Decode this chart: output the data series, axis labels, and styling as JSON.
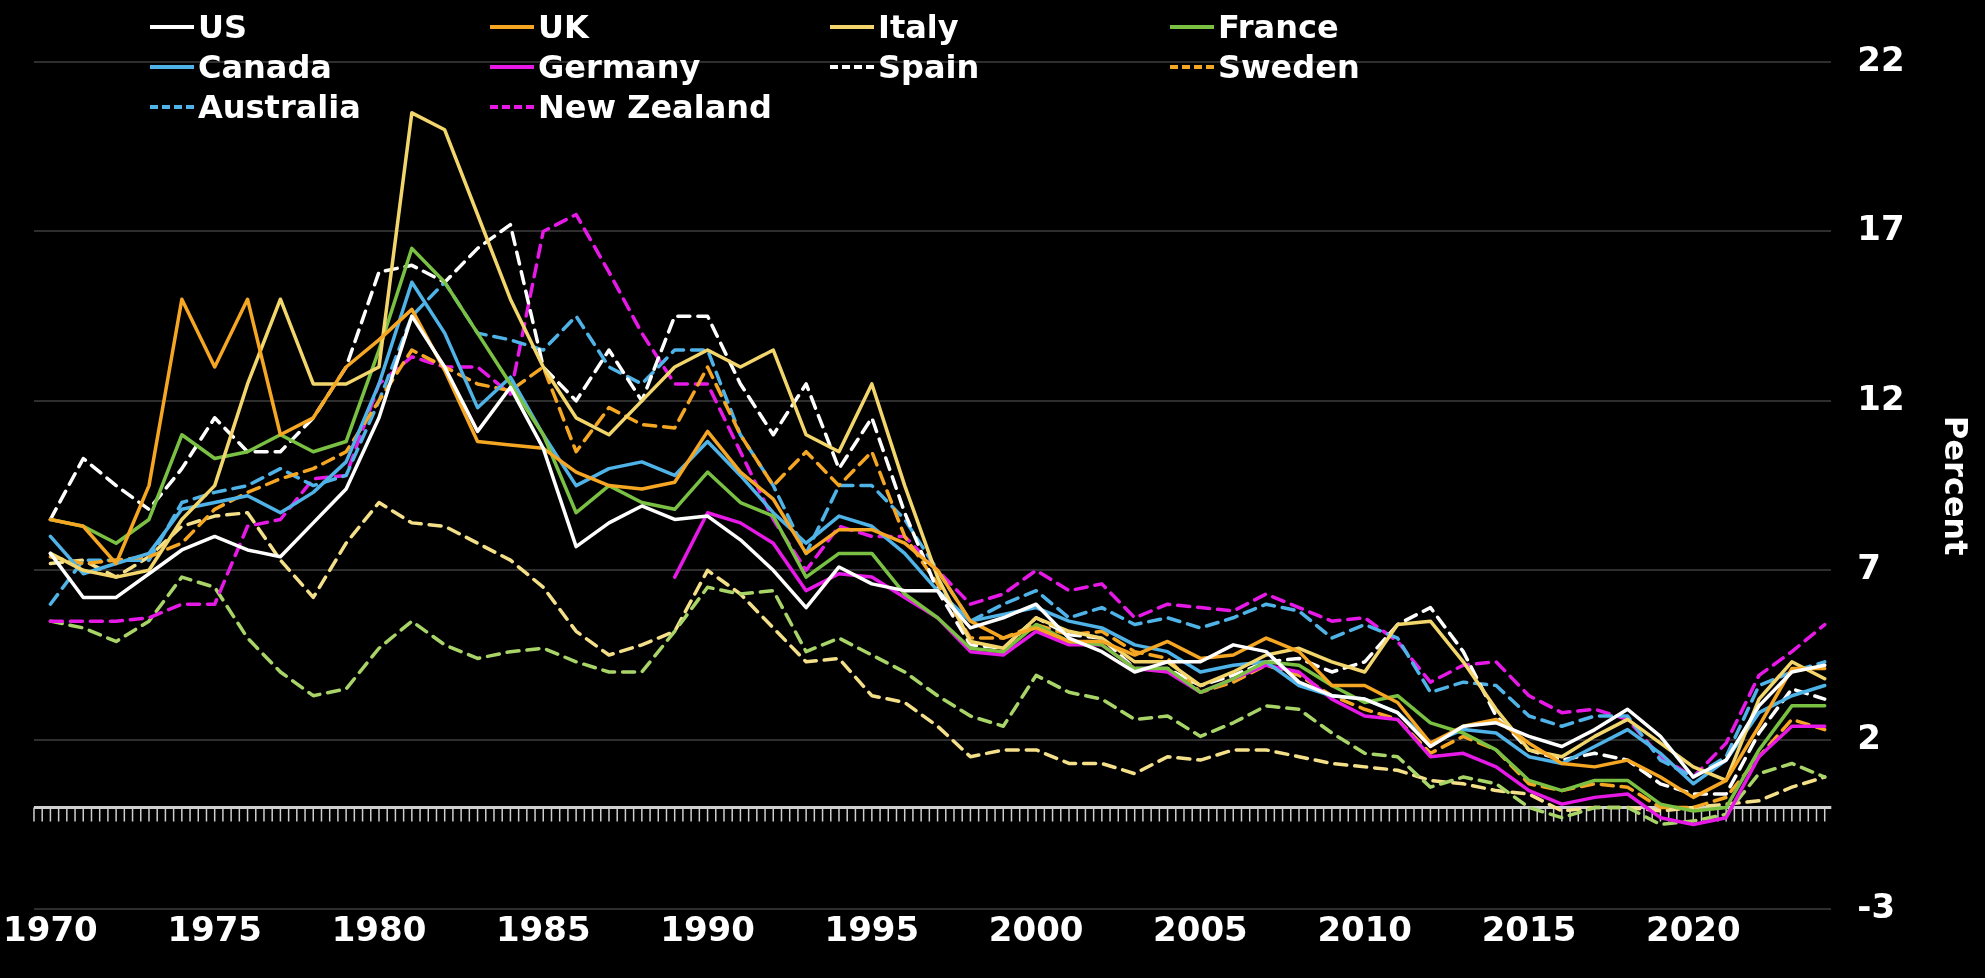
{
  "chart_data": {
    "type": "line",
    "ylabel": "Percent",
    "x": [
      1970,
      1971,
      1972,
      1973,
      1974,
      1975,
      1976,
      1977,
      1978,
      1979,
      1980,
      1981,
      1982,
      1983,
      1984,
      1985,
      1986,
      1987,
      1988,
      1989,
      1990,
      1991,
      1992,
      1993,
      1994,
      1995,
      1996,
      1997,
      1998,
      1999,
      2000,
      2001,
      2002,
      2003,
      2004,
      2005,
      2006,
      2007,
      2008,
      2009,
      2010,
      2011,
      2012,
      2013,
      2014,
      2015,
      2016,
      2017,
      2018,
      2019,
      2020,
      2021,
      2022,
      2023,
      2024
    ],
    "xlim": [
      1969.5,
      2024.2
    ],
    "xticks": [
      1970,
      1975,
      1980,
      1985,
      1990,
      1995,
      2000,
      2005,
      2010,
      2015,
      2020
    ],
    "ylim": [
      -3,
      22
    ],
    "yticks": [
      -3,
      2,
      7,
      12,
      17,
      22
    ],
    "grid": "y",
    "legend": "top left",
    "line_style": "solid",
    "marker": "none",
    "ref_lines": [
      {
        "axis": "y",
        "value": 0,
        "color": "#d0d0d0"
      }
    ],
    "series": [
      {
        "name": "US",
        "color": "#ffffff",
        "values": [
          7.5,
          6.2,
          6.2,
          6.9,
          7.6,
          8.0,
          7.6,
          7.4,
          8.4,
          9.4,
          11.5,
          14.5,
          13.0,
          11.1,
          12.4,
          10.6,
          7.7,
          8.4,
          8.9,
          8.5,
          8.6,
          7.9,
          7.0,
          5.9,
          7.1,
          6.6,
          6.4,
          6.4,
          5.3,
          5.6,
          6.0,
          5.0,
          4.6,
          4.0,
          4.3,
          4.3,
          4.8,
          4.6,
          3.7,
          3.3,
          3.2,
          2.8,
          1.8,
          2.4,
          2.5,
          2.1,
          1.8,
          2.3,
          2.9,
          2.1,
          0.9,
          1.4,
          3.0,
          4.0,
          4.2
        ]
      },
      {
        "name": "UK",
        "color": "#f5a623",
        "values": [
          8.5,
          8.3,
          7.2,
          9.5,
          15.0,
          13.0,
          15.0,
          11.0,
          11.5,
          13.0,
          13.8,
          14.7,
          12.9,
          10.8,
          10.7,
          10.6,
          9.9,
          9.5,
          9.4,
          9.6,
          11.1,
          9.9,
          9.1,
          7.5,
          8.2,
          8.2,
          7.8,
          7.0,
          5.5,
          5.0,
          5.3,
          4.9,
          4.9,
          4.5,
          4.9,
          4.4,
          4.5,
          5.0,
          4.6,
          3.6,
          3.6,
          3.1,
          1.9,
          2.4,
          2.6,
          1.9,
          1.3,
          1.2,
          1.4,
          0.9,
          0.3,
          0.8,
          2.4,
          4.1,
          4.1
        ]
      },
      {
        "name": "Italy",
        "color": "#f3d66b",
        "values": [
          7.5,
          7.0,
          6.8,
          7.0,
          8.5,
          9.5,
          12.5,
          15.0,
          12.5,
          12.5,
          13.0,
          20.5,
          20.0,
          17.5,
          15.0,
          13.0,
          11.5,
          11.0,
          12.0,
          13.0,
          13.5,
          13.0,
          13.5,
          11.0,
          10.5,
          12.5,
          9.5,
          6.8,
          4.9,
          4.7,
          5.6,
          5.2,
          5.0,
          4.3,
          4.3,
          3.6,
          4.0,
          4.5,
          4.7,
          4.3,
          4.0,
          5.4,
          5.5,
          4.3,
          2.9,
          1.7,
          1.5,
          2.1,
          2.6,
          1.9,
          1.2,
          0.8,
          3.2,
          4.3,
          3.8
        ]
      },
      {
        "name": "France",
        "color": "#7ac143",
        "values": [
          8.5,
          8.3,
          7.8,
          8.5,
          11.0,
          10.3,
          10.5,
          11.0,
          10.5,
          10.8,
          13.5,
          16.5,
          15.5,
          14.0,
          12.5,
          11.0,
          8.7,
          9.5,
          9.0,
          8.8,
          9.9,
          9.0,
          8.6,
          6.8,
          7.5,
          7.5,
          6.3,
          5.6,
          4.7,
          4.6,
          5.4,
          4.9,
          4.8,
          4.1,
          4.1,
          3.4,
          3.8,
          4.3,
          4.2,
          3.6,
          3.1,
          3.3,
          2.5,
          2.2,
          1.7,
          0.8,
          0.5,
          0.8,
          0.8,
          0.1,
          -0.1,
          0.0,
          1.7,
          3.0,
          3.0
        ]
      },
      {
        "name": "Canada",
        "color": "#4fb3e8",
        "values": [
          8.0,
          6.9,
          7.2,
          7.5,
          8.8,
          9.0,
          9.2,
          8.7,
          9.3,
          10.2,
          12.5,
          15.5,
          14.0,
          11.8,
          12.7,
          11.0,
          9.5,
          10.0,
          10.2,
          9.8,
          10.8,
          9.8,
          8.7,
          7.8,
          8.6,
          8.3,
          7.5,
          6.4,
          5.5,
          5.7,
          5.9,
          5.5,
          5.3,
          4.8,
          4.6,
          4.0,
          4.2,
          4.3,
          3.6,
          3.3,
          3.2,
          2.8,
          1.9,
          2.3,
          2.2,
          1.5,
          1.3,
          1.8,
          2.3,
          1.6,
          0.7,
          1.4,
          2.8,
          3.3,
          3.6
        ]
      },
      {
        "name": "Germany",
        "color": "#e619e6",
        "values": [
          null,
          null,
          null,
          null,
          null,
          null,
          null,
          null,
          null,
          null,
          null,
          null,
          null,
          null,
          null,
          null,
          null,
          null,
          null,
          6.8,
          8.7,
          8.4,
          7.8,
          6.4,
          6.9,
          6.8,
          6.2,
          5.6,
          4.6,
          4.5,
          5.2,
          4.8,
          4.8,
          4.1,
          4.0,
          3.4,
          3.8,
          4.2,
          4.0,
          3.2,
          2.7,
          2.6,
          1.5,
          1.6,
          1.2,
          0.5,
          0.1,
          0.3,
          0.4,
          -0.3,
          -0.5,
          -0.3,
          1.5,
          2.4,
          2.4
        ]
      },
      {
        "name": "Spain",
        "color": "#ffffff",
        "line_style": "dashed",
        "values": [
          8.5,
          10.3,
          9.5,
          8.8,
          10.0,
          11.5,
          10.5,
          10.5,
          11.5,
          13.0,
          15.8,
          16.0,
          15.5,
          16.5,
          17.2,
          13.0,
          12.0,
          13.5,
          12.0,
          14.5,
          14.5,
          12.5,
          11.0,
          12.5,
          10.0,
          11.5,
          8.7,
          6.4,
          4.8,
          4.7,
          5.6,
          5.1,
          5.0,
          4.1,
          4.1,
          3.6,
          3.9,
          4.3,
          4.4,
          4.0,
          4.3,
          5.4,
          5.9,
          4.6,
          2.7,
          1.7,
          1.4,
          1.6,
          1.4,
          0.7,
          0.4,
          0.4,
          2.2,
          3.5,
          3.2
        ]
      },
      {
        "name": "Sweden",
        "color": "#f5a623",
        "line_style": "dashed",
        "values": [
          7.4,
          7.2,
          7.3,
          7.4,
          7.8,
          8.8,
          9.3,
          9.7,
          10.0,
          10.5,
          12.0,
          13.5,
          13.0,
          12.5,
          12.3,
          13.0,
          10.5,
          11.8,
          11.3,
          11.2,
          13.0,
          11.0,
          9.5,
          10.5,
          9.5,
          10.5,
          8.0,
          6.6,
          5.0,
          5.0,
          5.4,
          5.1,
          5.2,
          4.6,
          4.4,
          3.4,
          3.7,
          4.2,
          3.9,
          3.3,
          2.9,
          2.6,
          1.6,
          2.1,
          1.7,
          0.7,
          0.5,
          0.7,
          0.6,
          0.0,
          0.0,
          0.3,
          1.5,
          2.6,
          2.3
        ]
      },
      {
        "name": "Australia",
        "color": "#4fb3e8",
        "line_style": "dashed",
        "values": [
          6.0,
          7.3,
          7.3,
          7.3,
          9.0,
          9.3,
          9.5,
          10.0,
          9.5,
          9.8,
          12.0,
          14.5,
          15.5,
          14.0,
          13.8,
          13.5,
          14.5,
          13.0,
          12.5,
          13.5,
          13.5,
          11.0,
          9.5,
          7.5,
          9.5,
          9.5,
          8.5,
          7.0,
          5.5,
          6.0,
          6.4,
          5.6,
          5.9,
          5.4,
          5.6,
          5.3,
          5.6,
          6.0,
          5.8,
          5.0,
          5.4,
          5.0,
          3.4,
          3.7,
          3.6,
          2.7,
          2.4,
          2.7,
          2.7,
          1.4,
          0.9,
          1.5,
          3.6,
          4.0,
          4.3
        ]
      },
      {
        "name": "New Zealand",
        "color": "#e619e6",
        "line_style": "dashed",
        "values": [
          5.5,
          5.5,
          5.5,
          5.6,
          6.0,
          6.0,
          8.3,
          8.5,
          9.7,
          9.8,
          12.5,
          13.3,
          13.0,
          13.0,
          12.2,
          17.0,
          17.5,
          15.8,
          14.0,
          12.5,
          12.5,
          10.5,
          8.5,
          7.0,
          8.3,
          8.0,
          8.0,
          7.0,
          6.0,
          6.3,
          7.0,
          6.4,
          6.6,
          5.6,
          6.0,
          5.9,
          5.8,
          6.3,
          5.9,
          5.5,
          5.6,
          4.9,
          3.7,
          4.2,
          4.3,
          3.3,
          2.8,
          2.9,
          2.6,
          1.5,
          0.9,
          1.9,
          3.9,
          4.6,
          5.4
        ]
      },
      {
        "color": "#a8d468",
        "line_style": "dashed",
        "values": [
          5.5,
          5.3,
          4.9,
          5.5,
          6.8,
          6.5,
          5.0,
          4.0,
          3.3,
          3.5,
          4.7,
          5.5,
          4.8,
          4.4,
          4.6,
          4.7,
          4.3,
          4.0,
          4.0,
          5.2,
          6.5,
          6.3,
          6.4,
          4.6,
          5.0,
          4.5,
          4.0,
          3.3,
          2.7,
          2.4,
          3.9,
          3.4,
          3.2,
          2.6,
          2.7,
          2.1,
          2.5,
          3.0,
          2.9,
          2.2,
          1.6,
          1.5,
          0.6,
          0.9,
          0.7,
          0.0,
          -0.3,
          0.0,
          0.0,
          -0.5,
          -0.4,
          -0.2,
          1.0,
          1.3,
          0.9
        ]
      },
      {
        "color": "#f5e08a",
        "line_style": "dashed",
        "values": [
          7.2,
          7.3,
          6.8,
          7.4,
          8.3,
          8.6,
          8.7,
          7.3,
          6.2,
          7.8,
          9.0,
          8.4,
          8.3,
          7.8,
          7.3,
          6.5,
          5.2,
          4.5,
          4.8,
          5.2,
          7.0,
          6.3,
          5.3,
          4.3,
          4.4,
          3.3,
          3.1,
          2.4,
          1.5,
          1.7,
          1.7,
          1.3,
          1.3,
          1.0,
          1.5,
          1.4,
          1.7,
          1.7,
          1.5,
          1.3,
          1.2,
          1.1,
          0.8,
          0.7,
          0.5,
          0.4,
          -0.1,
          0.0,
          0.0,
          -0.1,
          0.0,
          0.1,
          0.2,
          0.6,
          0.9
        ]
      }
    ]
  }
}
